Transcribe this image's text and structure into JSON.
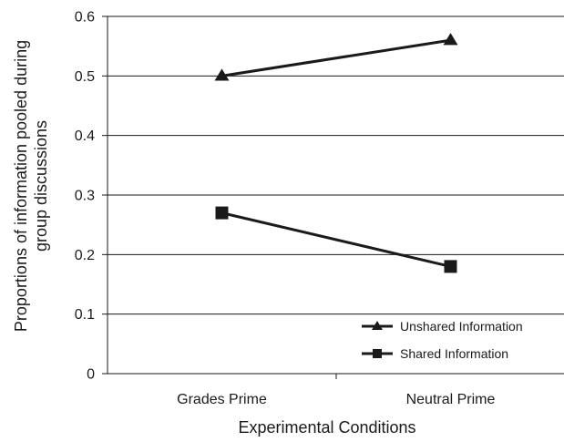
{
  "chart_data": {
    "type": "line",
    "title": "",
    "xlabel": "Experimental Conditions",
    "ylabel_lines": [
      "Proportions of information pooled during",
      "group discussions"
    ],
    "categories": [
      "Grades Prime",
      "Neutral Prime"
    ],
    "ylim": [
      0,
      0.6
    ],
    "yticks": [
      "0",
      "0.1",
      "0.2",
      "0.3",
      "0.4",
      "0.5",
      "0.6"
    ],
    "grid": true,
    "legend_position": "bottom-right",
    "series": [
      {
        "name": "Unshared Information",
        "marker": "triangle",
        "values": [
          0.5,
          0.56
        ]
      },
      {
        "name": "Shared Information",
        "marker": "square",
        "values": [
          0.27,
          0.18
        ]
      }
    ],
    "colors": {
      "line": "#1a1a1a",
      "grid": "#1a1a1a"
    }
  }
}
